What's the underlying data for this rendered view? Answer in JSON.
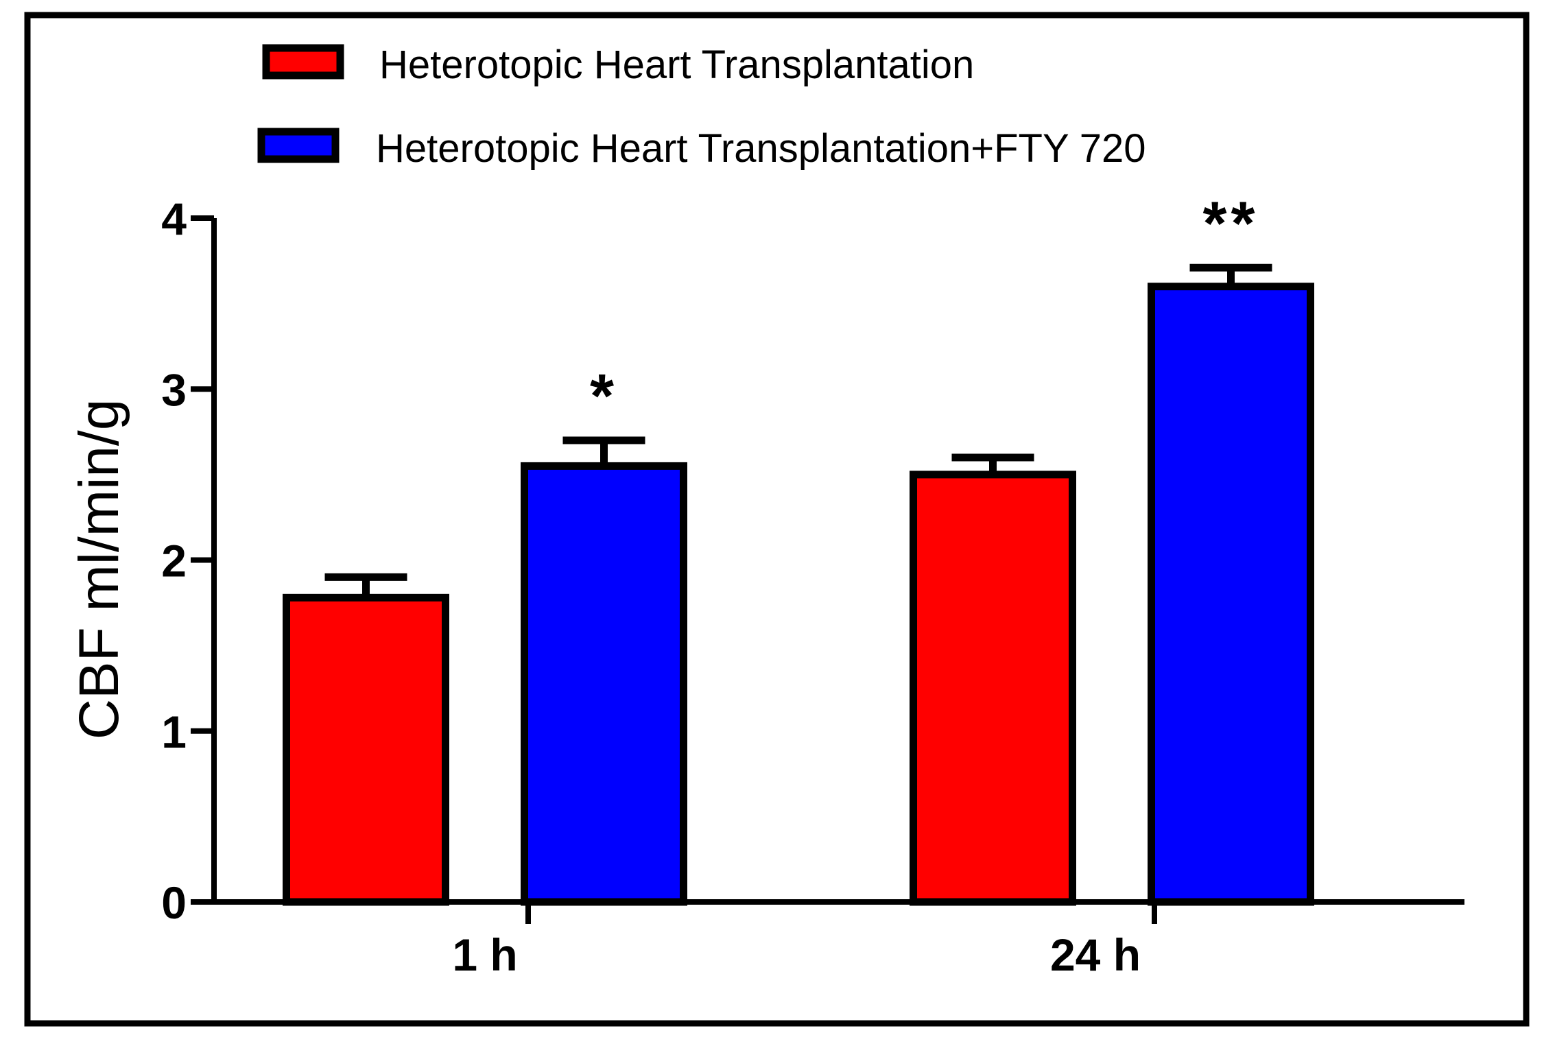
{
  "chart_data": {
    "type": "bar",
    "title": "",
    "xlabel": "",
    "ylabel": "CBF ml/min/g",
    "ylim": [
      0,
      4
    ],
    "yticks": [
      "0",
      "1",
      "2",
      "3",
      "4"
    ],
    "categories": [
      "1 h",
      "24 h"
    ],
    "series": [
      {
        "name": "Heterotopic Heart Transplantation",
        "color": "#ff0000",
        "values": [
          1.78,
          2.5
        ],
        "errors": [
          0.12,
          0.1
        ],
        "annotations": [
          "",
          ""
        ]
      },
      {
        "name": "Heterotopic Heart Transplantation+FTY 720",
        "color": "#0000ff",
        "values": [
          2.55,
          3.6
        ],
        "errors": [
          0.15,
          0.11
        ],
        "annotations": [
          "*",
          "**"
        ]
      }
    ],
    "legend_position": "top-left",
    "grid": false
  }
}
